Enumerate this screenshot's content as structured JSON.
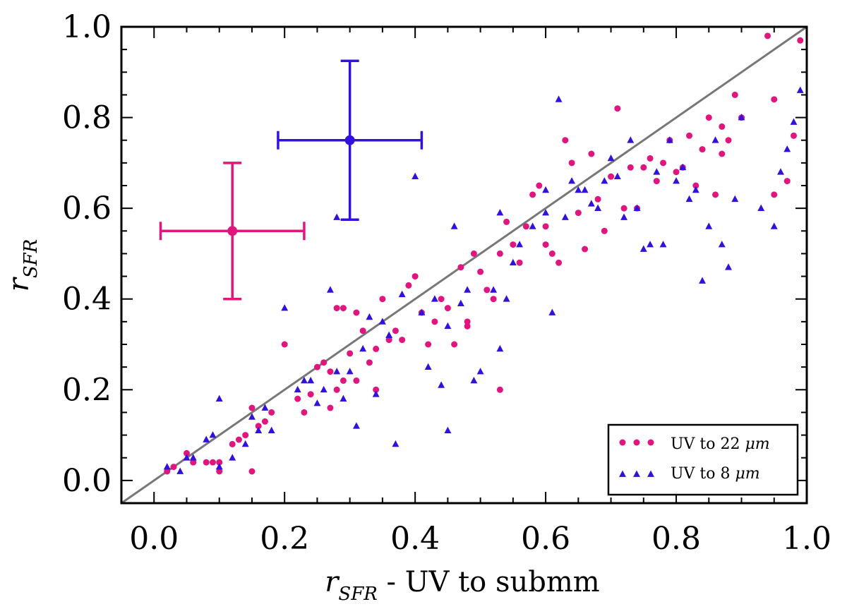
{
  "chart_data": {
    "type": "scatter",
    "title": "",
    "xlabel": {
      "var": "r",
      "sub": "SFR",
      "rest": " - UV to submm"
    },
    "ylabel": {
      "var": "r",
      "sub": "SFR"
    },
    "xlim": [
      -0.05,
      1.0
    ],
    "ylim": [
      -0.05,
      1.0
    ],
    "xticks": [
      "0.0",
      "0.2",
      "0.4",
      "0.6",
      "0.8",
      "1.0"
    ],
    "yticks": [
      "0.0",
      "0.2",
      "0.4",
      "0.6",
      "0.8",
      "1.0"
    ],
    "legend_position": "bottom-right",
    "colors": {
      "pink": "#e0157d",
      "blue": "#3311dd",
      "line": "#777777"
    },
    "one_to_one_line": {
      "x": [
        -0.05,
        1.0
      ],
      "y": [
        -0.05,
        1.0
      ]
    },
    "error_bars": [
      {
        "series": "UV to 22 μm",
        "x": 0.12,
        "y": 0.55,
        "xerr": 0.11,
        "yerr": 0.15
      },
      {
        "series": "UV to 8 μm",
        "x": 0.3,
        "y": 0.75,
        "xerr": 0.11,
        "yerr": 0.175
      }
    ],
    "series": [
      {
        "name": "UV to 22 μm",
        "label": "UV to 22",
        "unit": "μm",
        "marker": "circle",
        "points": [
          [
            0.02,
            0.02
          ],
          [
            0.03,
            0.03
          ],
          [
            0.05,
            0.06
          ],
          [
            0.06,
            0.04
          ],
          [
            0.08,
            0.04
          ],
          [
            0.09,
            0.04
          ],
          [
            0.1,
            0.04
          ],
          [
            0.1,
            0.02
          ],
          [
            0.12,
            0.08
          ],
          [
            0.13,
            0.09
          ],
          [
            0.14,
            0.1
          ],
          [
            0.15,
            0.02
          ],
          [
            0.15,
            0.16
          ],
          [
            0.16,
            0.12
          ],
          [
            0.17,
            0.13
          ],
          [
            0.18,
            0.15
          ],
          [
            0.2,
            0.3
          ],
          [
            0.22,
            0.18
          ],
          [
            0.23,
            0.15
          ],
          [
            0.24,
            0.19
          ],
          [
            0.25,
            0.25
          ],
          [
            0.26,
            0.26
          ],
          [
            0.27,
            0.24
          ],
          [
            0.27,
            0.16
          ],
          [
            0.28,
            0.2
          ],
          [
            0.28,
            0.38
          ],
          [
            0.29,
            0.38
          ],
          [
            0.29,
            0.22
          ],
          [
            0.3,
            0.28
          ],
          [
            0.31,
            0.37
          ],
          [
            0.31,
            0.22
          ],
          [
            0.32,
            0.33
          ],
          [
            0.33,
            0.26
          ],
          [
            0.34,
            0.29
          ],
          [
            0.34,
            0.2
          ],
          [
            0.35,
            0.4
          ],
          [
            0.36,
            0.31
          ],
          [
            0.37,
            0.33
          ],
          [
            0.38,
            0.31
          ],
          [
            0.39,
            0.43
          ],
          [
            0.4,
            0.45
          ],
          [
            0.41,
            0.37
          ],
          [
            0.42,
            0.3
          ],
          [
            0.43,
            0.35
          ],
          [
            0.44,
            0.4
          ],
          [
            0.45,
            0.38
          ],
          [
            0.46,
            0.3
          ],
          [
            0.47,
            0.47
          ],
          [
            0.48,
            0.34
          ],
          [
            0.48,
            0.35
          ],
          [
            0.49,
            0.5
          ],
          [
            0.5,
            0.46
          ],
          [
            0.51,
            0.42
          ],
          [
            0.52,
            0.4
          ],
          [
            0.53,
            0.5
          ],
          [
            0.53,
            0.2
          ],
          [
            0.54,
            0.57
          ],
          [
            0.55,
            0.52
          ],
          [
            0.56,
            0.48
          ],
          [
            0.57,
            0.56
          ],
          [
            0.58,
            0.63
          ],
          [
            0.59,
            0.65
          ],
          [
            0.6,
            0.52
          ],
          [
            0.6,
            0.56
          ],
          [
            0.61,
            0.5
          ],
          [
            0.62,
            0.48
          ],
          [
            0.63,
            0.75
          ],
          [
            0.64,
            0.7
          ],
          [
            0.65,
            0.59
          ],
          [
            0.66,
            0.51
          ],
          [
            0.67,
            0.72
          ],
          [
            0.68,
            0.62
          ],
          [
            0.69,
            0.55
          ],
          [
            0.7,
            0.67
          ],
          [
            0.71,
            0.82
          ],
          [
            0.72,
            0.6
          ],
          [
            0.73,
            0.69
          ],
          [
            0.74,
            0.6
          ],
          [
            0.75,
            0.69
          ],
          [
            0.76,
            0.71
          ],
          [
            0.77,
            0.66
          ],
          [
            0.78,
            0.7
          ],
          [
            0.79,
            0.75
          ],
          [
            0.8,
            0.68
          ],
          [
            0.81,
            0.69
          ],
          [
            0.82,
            0.76
          ],
          [
            0.83,
            0.65
          ],
          [
            0.84,
            0.73
          ],
          [
            0.85,
            0.8
          ],
          [
            0.86,
            0.63
          ],
          [
            0.87,
            0.72
          ],
          [
            0.87,
            0.78
          ],
          [
            0.88,
            0.75
          ],
          [
            0.89,
            0.85
          ],
          [
            0.9,
            0.8
          ],
          [
            0.94,
            0.98
          ],
          [
            0.95,
            0.84
          ],
          [
            0.95,
            0.63
          ],
          [
            0.97,
            0.66
          ],
          [
            0.98,
            0.76
          ],
          [
            0.99,
            0.97
          ]
        ]
      },
      {
        "name": "UV to 8 μm",
        "label": "UV to 8",
        "unit": "μm",
        "marker": "triangle",
        "points": [
          [
            0.02,
            0.03
          ],
          [
            0.04,
            0.02
          ],
          [
            0.05,
            0.05
          ],
          [
            0.06,
            0.05
          ],
          [
            0.08,
            0.09
          ],
          [
            0.09,
            0.1
          ],
          [
            0.1,
            0.18
          ],
          [
            0.1,
            0.03
          ],
          [
            0.12,
            0.05
          ],
          [
            0.14,
            0.08
          ],
          [
            0.15,
            0.14
          ],
          [
            0.16,
            0.11
          ],
          [
            0.17,
            0.16
          ],
          [
            0.18,
            0.11
          ],
          [
            0.2,
            0.38
          ],
          [
            0.22,
            0.2
          ],
          [
            0.23,
            0.22
          ],
          [
            0.24,
            0.22
          ],
          [
            0.25,
            0.17
          ],
          [
            0.26,
            0.2
          ],
          [
            0.27,
            0.42
          ],
          [
            0.28,
            0.58
          ],
          [
            0.28,
            0.24
          ],
          [
            0.29,
            0.18
          ],
          [
            0.3,
            0.24
          ],
          [
            0.31,
            0.12
          ],
          [
            0.32,
            0.29
          ],
          [
            0.33,
            0.36
          ],
          [
            0.34,
            0.19
          ],
          [
            0.35,
            0.35
          ],
          [
            0.36,
            0.32
          ],
          [
            0.37,
            0.08
          ],
          [
            0.38,
            0.41
          ],
          [
            0.4,
            0.67
          ],
          [
            0.41,
            0.37
          ],
          [
            0.42,
            0.25
          ],
          [
            0.43,
            0.4
          ],
          [
            0.44,
            0.21
          ],
          [
            0.45,
            0.34
          ],
          [
            0.45,
            0.11
          ],
          [
            0.46,
            0.56
          ],
          [
            0.47,
            0.39
          ],
          [
            0.48,
            0.42
          ],
          [
            0.49,
            0.22
          ],
          [
            0.5,
            0.24
          ],
          [
            0.52,
            0.42
          ],
          [
            0.53,
            0.59
          ],
          [
            0.53,
            0.29
          ],
          [
            0.54,
            0.4
          ],
          [
            0.55,
            0.48
          ],
          [
            0.56,
            0.52
          ],
          [
            0.58,
            0.56
          ],
          [
            0.6,
            0.59
          ],
          [
            0.6,
            0.64
          ],
          [
            0.61,
            0.37
          ],
          [
            0.62,
            0.84
          ],
          [
            0.63,
            0.58
          ],
          [
            0.64,
            0.66
          ],
          [
            0.65,
            0.64
          ],
          [
            0.66,
            0.64
          ],
          [
            0.67,
            0.61
          ],
          [
            0.68,
            0.6
          ],
          [
            0.69,
            0.66
          ],
          [
            0.7,
            0.71
          ],
          [
            0.71,
            0.67
          ],
          [
            0.72,
            0.58
          ],
          [
            0.73,
            0.75
          ],
          [
            0.74,
            0.6
          ],
          [
            0.75,
            0.51
          ],
          [
            0.76,
            0.52
          ],
          [
            0.77,
            0.68
          ],
          [
            0.78,
            0.52
          ],
          [
            0.79,
            0.75
          ],
          [
            0.8,
            0.66
          ],
          [
            0.81,
            0.69
          ],
          [
            0.82,
            0.62
          ],
          [
            0.83,
            0.64
          ],
          [
            0.84,
            0.44
          ],
          [
            0.85,
            0.56
          ],
          [
            0.86,
            0.75
          ],
          [
            0.87,
            0.52
          ],
          [
            0.88,
            0.47
          ],
          [
            0.89,
            0.62
          ],
          [
            0.9,
            0.8
          ],
          [
            0.93,
            0.6
          ],
          [
            0.95,
            0.56
          ],
          [
            0.96,
            0.68
          ],
          [
            0.97,
            0.73
          ],
          [
            0.98,
            0.79
          ],
          [
            0.99,
            0.86
          ]
        ]
      }
    ]
  }
}
